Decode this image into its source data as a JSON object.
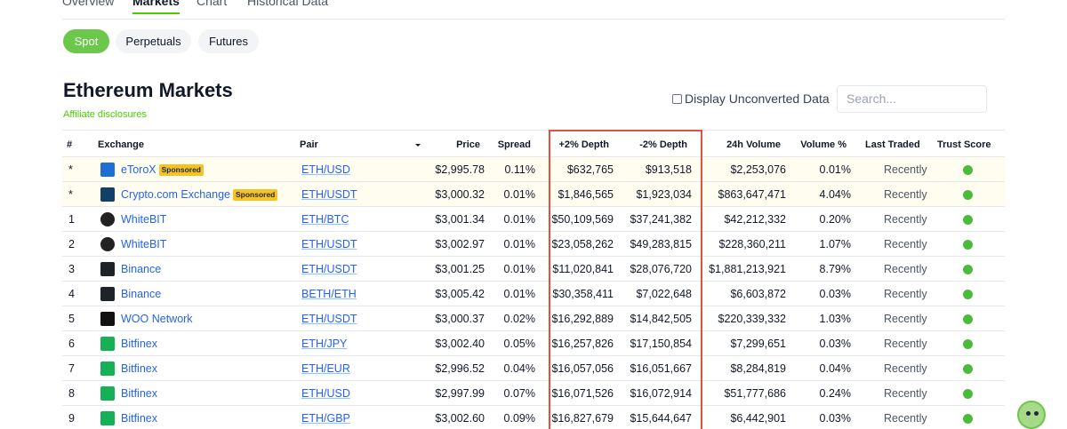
{
  "tabs": [
    "Overview",
    "Markets",
    "Chart",
    "Historical Data"
  ],
  "pills": [
    "Spot",
    "Perpetuals",
    "Futures"
  ],
  "page_title": "Ethereum Markets",
  "affiliate": "Affiliate disclosures",
  "unconverted_label": "Display Unconverted Data",
  "search_placeholder": "Search...",
  "headers": {
    "rank": "#",
    "exchange": "Exchange",
    "pair": "Pair",
    "price": "Price",
    "spread": "Spread",
    "plus_depth": "+2% Depth",
    "minus_depth": "-2% Depth",
    "volume": "24h Volume",
    "volume_pct": "Volume %",
    "last_traded": "Last Traded",
    "trust": "Trust Score"
  },
  "sponsored_label": "Sponsored",
  "trust_color": "#4bbb3b",
  "rows": [
    {
      "rank": "*",
      "exchange": "eToroX",
      "sponsored": true,
      "pair": "ETH/USD",
      "price": "$2,995.78",
      "spread": "0.11%",
      "plus": "$632,765",
      "minus": "$913,518",
      "volume": "$2,253,076",
      "vol_pct": "0.01%",
      "last": "Recently"
    },
    {
      "rank": "*",
      "exchange": "Crypto.com Exchange",
      "sponsored": true,
      "pair": "ETH/USDT",
      "price": "$3,000.32",
      "spread": "0.01%",
      "plus": "$1,846,565",
      "minus": "$1,923,034",
      "volume": "$863,647,471",
      "vol_pct": "4.04%",
      "last": "Recently"
    },
    {
      "rank": "1",
      "exchange": "WhiteBIT",
      "sponsored": false,
      "pair": "ETH/BTC",
      "price": "$3,001.34",
      "spread": "0.01%",
      "plus": "$50,109,569",
      "minus": "$37,241,382",
      "volume": "$42,212,332",
      "vol_pct": "0.20%",
      "last": "Recently"
    },
    {
      "rank": "2",
      "exchange": "WhiteBIT",
      "sponsored": false,
      "pair": "ETH/USDT",
      "price": "$3,002.97",
      "spread": "0.01%",
      "plus": "$23,058,262",
      "minus": "$49,283,815",
      "volume": "$228,360,211",
      "vol_pct": "1.07%",
      "last": "Recently"
    },
    {
      "rank": "3",
      "exchange": "Binance",
      "sponsored": false,
      "pair": "ETH/USDT",
      "price": "$3,001.25",
      "spread": "0.01%",
      "plus": "$11,020,841",
      "minus": "$28,076,720",
      "volume": "$1,881,213,921",
      "vol_pct": "8.79%",
      "last": "Recently"
    },
    {
      "rank": "4",
      "exchange": "Binance",
      "sponsored": false,
      "pair": "BETH/ETH",
      "price": "$3,005.42",
      "spread": "0.01%",
      "plus": "$30,358,411",
      "minus": "$7,022,648",
      "volume": "$6,603,872",
      "vol_pct": "0.03%",
      "last": "Recently"
    },
    {
      "rank": "5",
      "exchange": "WOO Network",
      "sponsored": false,
      "pair": "ETH/USDT",
      "price": "$3,000.37",
      "spread": "0.02%",
      "plus": "$16,292,889",
      "minus": "$14,842,505",
      "volume": "$220,339,332",
      "vol_pct": "1.03%",
      "last": "Recently"
    },
    {
      "rank": "6",
      "exchange": "Bitfinex",
      "sponsored": false,
      "pair": "ETH/JPY",
      "price": "$3,002.40",
      "spread": "0.05%",
      "plus": "$16,257,826",
      "minus": "$17,150,854",
      "volume": "$7,299,651",
      "vol_pct": "0.03%",
      "last": "Recently"
    },
    {
      "rank": "7",
      "exchange": "Bitfinex",
      "sponsored": false,
      "pair": "ETH/EUR",
      "price": "$2,996.52",
      "spread": "0.04%",
      "plus": "$16,057,056",
      "minus": "$16,051,667",
      "volume": "$8,284,819",
      "vol_pct": "0.04%",
      "last": "Recently"
    },
    {
      "rank": "8",
      "exchange": "Bitfinex",
      "sponsored": false,
      "pair": "ETH/USD",
      "price": "$2,997.99",
      "spread": "0.07%",
      "plus": "$16,071,526",
      "minus": "$16,072,914",
      "volume": "$51,777,686",
      "vol_pct": "0.24%",
      "last": "Recently"
    },
    {
      "rank": "9",
      "exchange": "Bitfinex",
      "sponsored": false,
      "pair": "ETH/GBP",
      "price": "$3,002.60",
      "spread": "0.09%",
      "plus": "$16,827,679",
      "minus": "$15,644,647",
      "volume": "$6,442,901",
      "vol_pct": "0.03%",
      "last": "Recently"
    }
  ]
}
